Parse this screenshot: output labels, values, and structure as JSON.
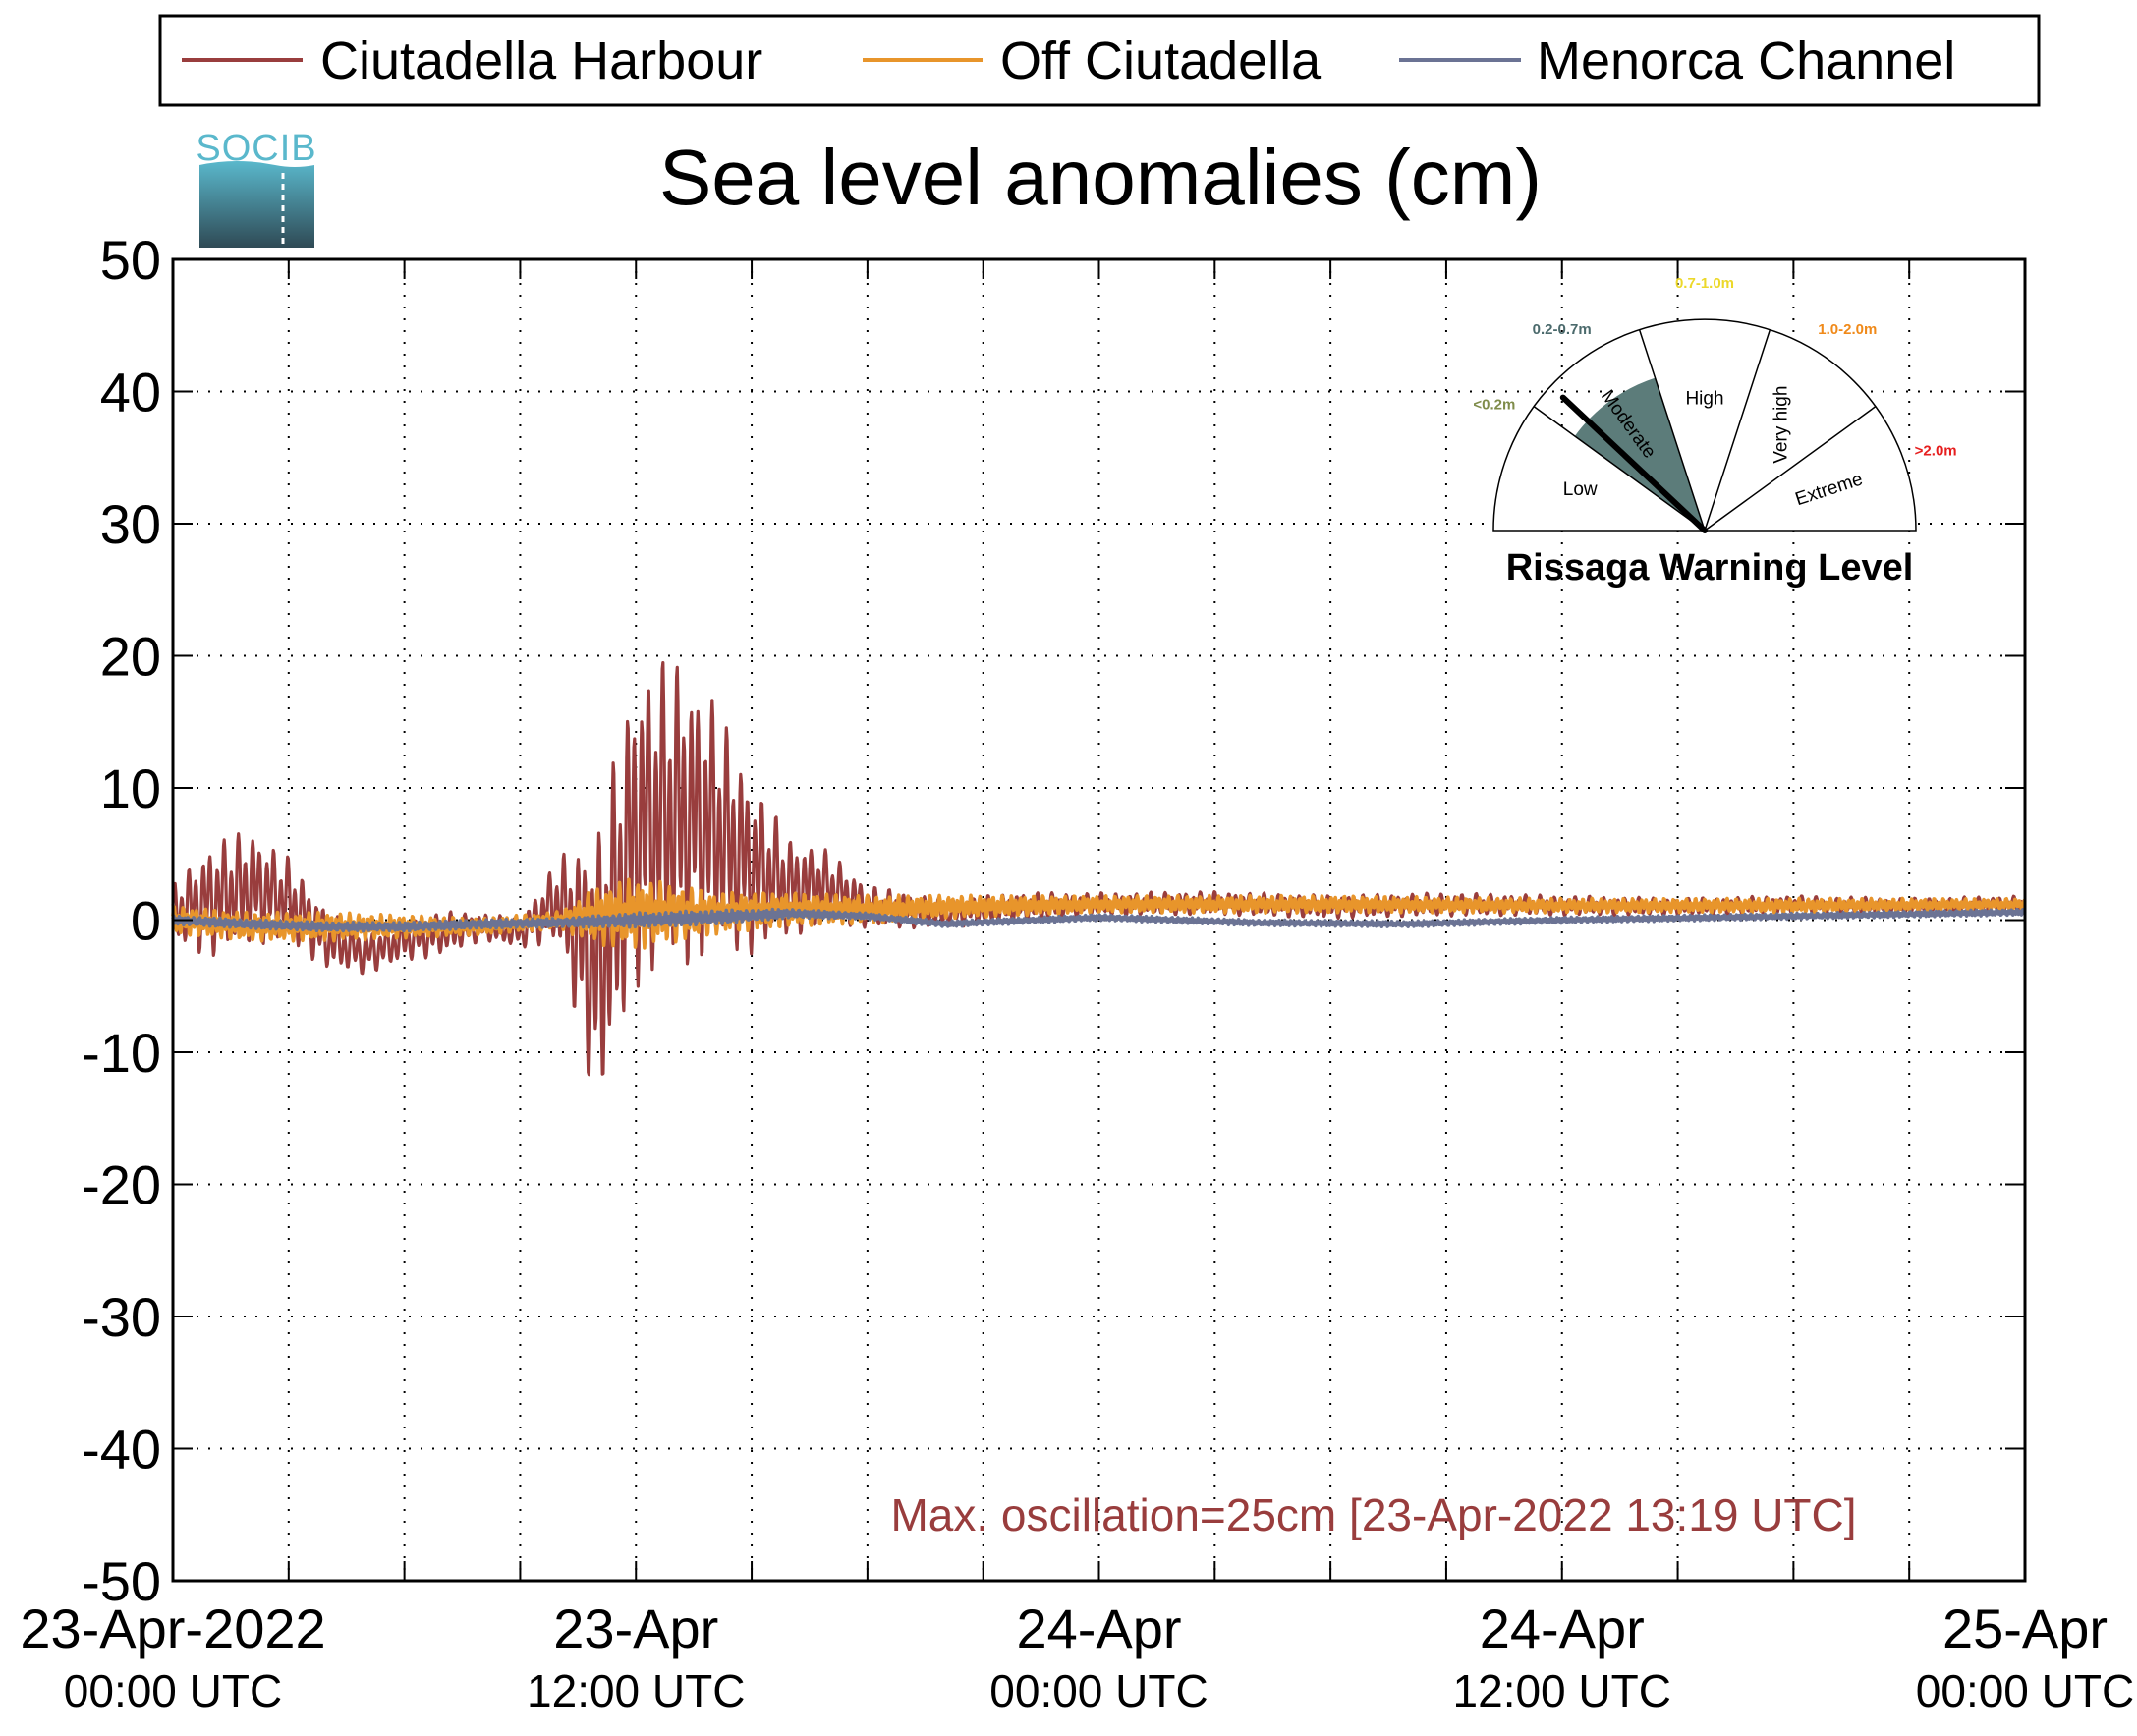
{
  "chart_data": {
    "type": "line",
    "title": "Sea level anomalies (cm)",
    "xlabel": "",
    "ylabel": "",
    "ylim": [
      -50,
      50
    ],
    "y_ticks": [
      50,
      40,
      30,
      20,
      10,
      0,
      -10,
      -20,
      -30,
      -40,
      -50
    ],
    "xlim": [
      "2022-04-23T00:00Z",
      "2022-04-25T00:00Z"
    ],
    "x_ticks": [
      {
        "time": "2022-04-23T00:00Z",
        "label": "23-Apr-2022",
        "sublabel": "00:00 UTC"
      },
      {
        "time": "2022-04-23T12:00Z",
        "label": "23-Apr",
        "sublabel": "12:00 UTC"
      },
      {
        "time": "2022-04-24T00:00Z",
        "label": "24-Apr",
        "sublabel": "00:00 UTC"
      },
      {
        "time": "2022-04-24T12:00Z",
        "label": "24-Apr",
        "sublabel": "12:00 UTC"
      },
      {
        "time": "2022-04-25T00:00Z",
        "label": "25-Apr",
        "sublabel": "00:00 UTC"
      }
    ],
    "grid": true,
    "legend_position": "top",
    "series": [
      {
        "name": "Ciutadella Harbour",
        "color": "#993d3d",
        "x": [
          "2022-04-23T00:00Z",
          "2022-04-23T01:00Z",
          "2022-04-23T02:00Z",
          "2022-04-23T03:00Z",
          "2022-04-23T04:00Z",
          "2022-04-23T05:00Z",
          "2022-04-23T06:00Z",
          "2022-04-23T07:00Z",
          "2022-04-23T08:00Z",
          "2022-04-23T09:00Z",
          "2022-04-23T10:00Z",
          "2022-04-23T11:00Z",
          "2022-04-23T12:00Z",
          "2022-04-23T13:00Z",
          "2022-04-23T14:00Z",
          "2022-04-23T15:00Z",
          "2022-04-23T16:00Z",
          "2022-04-23T17:00Z",
          "2022-04-23T18:00Z",
          "2022-04-23T20:00Z",
          "2022-04-23T22:00Z",
          "2022-04-24T00:00Z",
          "2022-04-24T03:00Z",
          "2022-04-24T06:00Z",
          "2022-04-24T09:00Z",
          "2022-04-24T12:00Z",
          "2022-04-24T15:00Z",
          "2022-04-24T18:00Z",
          "2022-04-24T21:00Z",
          "2022-04-25T00:00Z"
        ],
        "y": [
          0.5,
          1.5,
          2.5,
          1.5,
          -1.5,
          -2.5,
          -1.5,
          -1,
          -0.5,
          -1,
          1.5,
          -4,
          7,
          8,
          7,
          4,
          2.5,
          2.5,
          1,
          0.5,
          1,
          1.2,
          1.3,
          1,
          1.2,
          1.1,
          1,
          1.2,
          1,
          1.2
        ],
        "envelope": [
          2,
          4,
          4,
          3,
          2,
          1.5,
          1.5,
          1.5,
          1,
          1,
          3,
          10,
          11,
          11,
          9,
          6,
          3.5,
          2.5,
          1.5,
          1,
          1,
          0.8,
          0.8,
          0.8,
          0.8,
          0.7,
          0.6,
          0.6,
          0.6,
          0.6
        ]
      },
      {
        "name": "Off Ciutadella",
        "color": "#e8952b",
        "x": [
          "2022-04-23T00:00Z",
          "2022-04-23T02:00Z",
          "2022-04-23T04:00Z",
          "2022-04-23T06:00Z",
          "2022-04-23T08:00Z",
          "2022-04-23T10:00Z",
          "2022-04-23T11:00Z",
          "2022-04-23T12:00Z",
          "2022-04-23T13:00Z",
          "2022-04-23T14:00Z",
          "2022-04-23T16:00Z",
          "2022-04-23T18:00Z",
          "2022-04-23T20:00Z",
          "2022-04-24T00:00Z",
          "2022-04-24T06:00Z",
          "2022-04-24T12:00Z",
          "2022-04-24T18:00Z",
          "2022-04-25T00:00Z"
        ],
        "y": [
          0,
          -0.5,
          -0.5,
          -0.5,
          -0.5,
          0,
          0.3,
          0.5,
          0.5,
          0.5,
          0.8,
          0.8,
          1,
          1.2,
          1.2,
          1.1,
          1.1,
          1.2
        ],
        "envelope": [
          1,
          1,
          1,
          0.8,
          0.6,
          0.6,
          2,
          2.5,
          2,
          1.5,
          1.2,
          1,
          0.8,
          0.6,
          0.6,
          0.5,
          0.5,
          0.4
        ]
      },
      {
        "name": "Menorca Channel",
        "color": "#6b7394",
        "x": [
          "2022-04-23T00:00Z",
          "2022-04-23T02:00Z",
          "2022-04-23T04:00Z",
          "2022-04-23T06:00Z",
          "2022-04-23T08:00Z",
          "2022-04-23T10:00Z",
          "2022-04-23T12:00Z",
          "2022-04-23T14:00Z",
          "2022-04-23T16:00Z",
          "2022-04-23T18:00Z",
          "2022-04-23T20:00Z",
          "2022-04-24T00:00Z",
          "2022-04-24T04:00Z",
          "2022-04-24T08:00Z",
          "2022-04-24T12:00Z",
          "2022-04-24T16:00Z",
          "2022-04-24T20:00Z",
          "2022-04-25T00:00Z"
        ],
        "y": [
          0,
          -0.3,
          -0.5,
          -0.5,
          -0.3,
          -0.2,
          0,
          0.2,
          0.5,
          0.3,
          -0.3,
          0.2,
          -0.2,
          -0.3,
          0,
          0.2,
          0.4,
          0.6
        ],
        "envelope": [
          0.3,
          0.3,
          0.3,
          0.3,
          0.3,
          0.3,
          0.5,
          0.5,
          0.3,
          0.2,
          0.2,
          0.2,
          0.2,
          0.2,
          0.2,
          0.2,
          0.2,
          0.2
        ]
      }
    ],
    "annotation": "Max. oscillation=25cm [23-Apr-2022 13:19 UTC]",
    "annotation_color": "#993d3d"
  },
  "logo": {
    "text": "SOCIB",
    "color_top": "#5ab8cc",
    "color_bottom": "#2f4a55"
  },
  "gauge": {
    "title": "Rissaga Warning Level",
    "current_level": "Moderate",
    "needle_value_m": 0.3,
    "sectors": [
      {
        "name": "Low",
        "range_label": "<0.2m",
        "range_color": "#7f8c4a",
        "fill": "#ffffff"
      },
      {
        "name": "Moderate",
        "range_label": "0.2-0.7m",
        "range_color": "#4b6a6c",
        "fill": "#5c7c7a"
      },
      {
        "name": "High",
        "range_label": "0.7-1.0m",
        "range_color": "#ecd82a",
        "fill": "#ffffff"
      },
      {
        "name": "Very high",
        "range_label": "1.0-2.0m",
        "range_color": "#f08a1a",
        "fill": "#ffffff"
      },
      {
        "name": "Extreme",
        "range_label": ">2.0m",
        "range_color": "#e61e1e",
        "fill": "#ffffff"
      }
    ]
  }
}
